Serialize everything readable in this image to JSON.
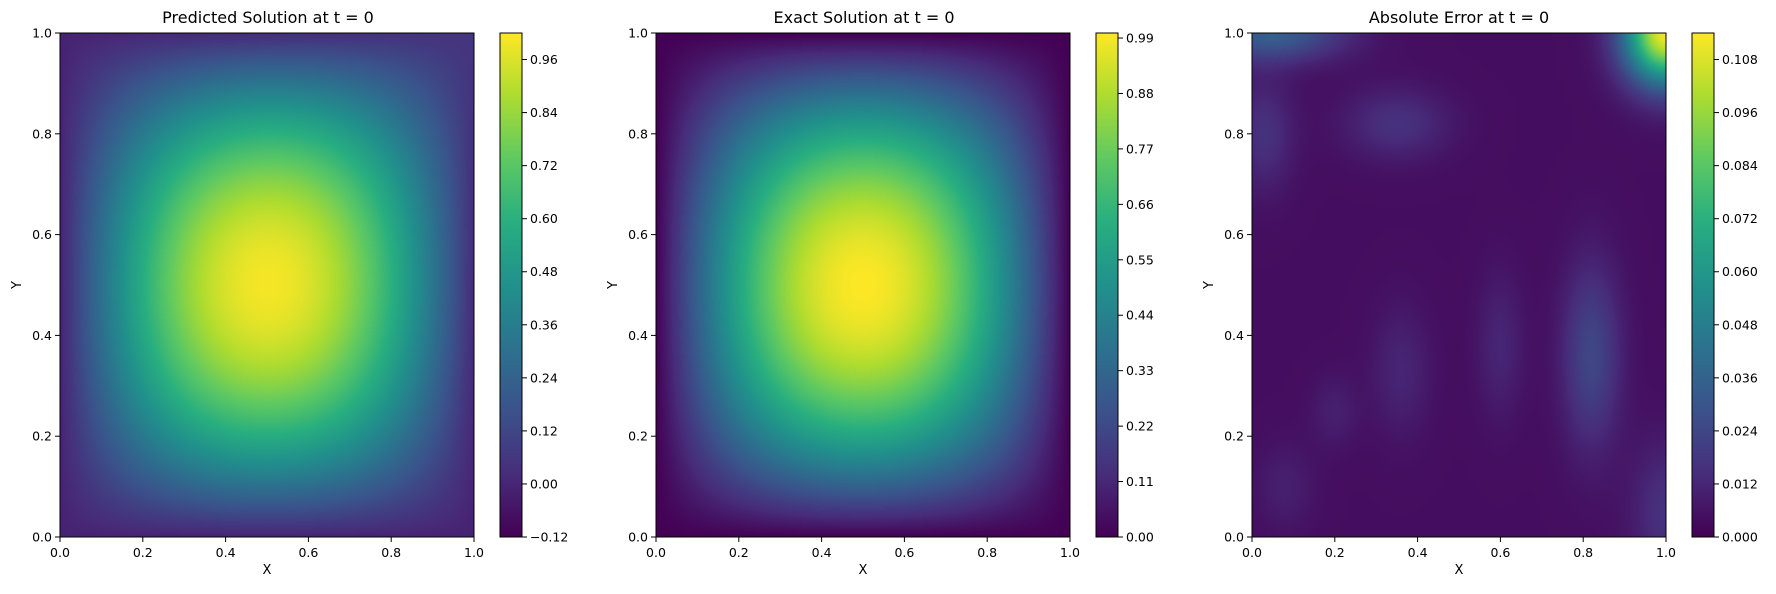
{
  "chart_data": [
    {
      "type": "heatmap",
      "title": "Predicted Solution at t = 0",
      "xlabel": "X",
      "ylabel": "Y",
      "xlim": [
        0,
        1
      ],
      "ylim": [
        0,
        1
      ],
      "x_ticks": [
        "0.0",
        "0.2",
        "0.4",
        "0.6",
        "0.8",
        "1.0"
      ],
      "y_ticks": [
        "0.0",
        "0.2",
        "0.4",
        "0.6",
        "0.8",
        "1.0"
      ],
      "colormap": "viridis",
      "colorbar_range": [
        -0.12,
        1.02
      ],
      "colorbar_ticks": [
        "−0.12",
        "0.00",
        "0.12",
        "0.24",
        "0.36",
        "0.48",
        "0.60",
        "0.72",
        "0.84",
        "0.96"
      ],
      "colorbar_tick_values": [
        -0.12,
        0.0,
        0.12,
        0.24,
        0.36,
        0.48,
        0.6,
        0.72,
        0.84,
        0.96
      ],
      "peak": {
        "x": 0.5,
        "y": 0.5,
        "value": 1.0
      }
    },
    {
      "type": "heatmap",
      "title": "Exact Solution at t = 0",
      "xlabel": "X",
      "ylabel": "Y",
      "xlim": [
        0,
        1
      ],
      "ylim": [
        0,
        1
      ],
      "x_ticks": [
        "0.0",
        "0.2",
        "0.4",
        "0.6",
        "0.8",
        "1.0"
      ],
      "y_ticks": [
        "0.0",
        "0.2",
        "0.4",
        "0.6",
        "0.8",
        "1.0"
      ],
      "colormap": "viridis",
      "colorbar_range": [
        0.0,
        1.0
      ],
      "colorbar_ticks": [
        "0.00",
        "0.11",
        "0.22",
        "0.33",
        "0.44",
        "0.55",
        "0.66",
        "0.77",
        "0.88",
        "0.99"
      ],
      "colorbar_tick_values": [
        0.0,
        0.11,
        0.22,
        0.33,
        0.44,
        0.55,
        0.66,
        0.77,
        0.88,
        0.99
      ],
      "peak": {
        "x": 0.5,
        "y": 0.5,
        "value": 1.0
      }
    },
    {
      "type": "heatmap",
      "title": "Absolute Error at t = 0",
      "xlabel": "X",
      "ylabel": "Y",
      "xlim": [
        0,
        1
      ],
      "ylim": [
        0,
        1
      ],
      "x_ticks": [
        "0.0",
        "0.2",
        "0.4",
        "0.6",
        "0.8",
        "1.0"
      ],
      "y_ticks": [
        "0.0",
        "0.2",
        "0.4",
        "0.6",
        "0.8",
        "1.0"
      ],
      "colormap": "viridis",
      "colorbar_range": [
        0.0,
        0.114
      ],
      "colorbar_ticks": [
        "0.000",
        "0.012",
        "0.024",
        "0.036",
        "0.048",
        "0.060",
        "0.072",
        "0.084",
        "0.096",
        "0.108"
      ],
      "colorbar_tick_values": [
        0.0,
        0.012,
        0.024,
        0.036,
        0.048,
        0.06,
        0.072,
        0.084,
        0.096,
        0.108
      ],
      "peak": {
        "x": 1.0,
        "y": 1.0,
        "value": 0.112
      }
    }
  ]
}
